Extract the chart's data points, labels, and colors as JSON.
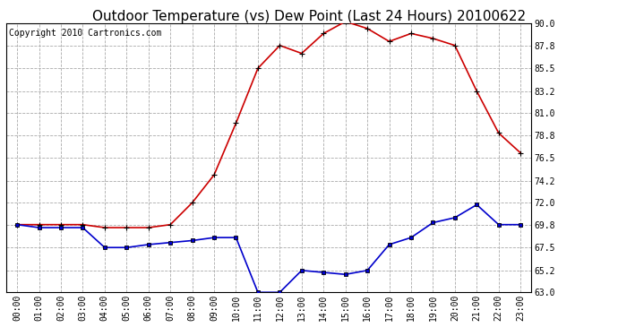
{
  "title": "Outdoor Temperature (vs) Dew Point (Last 24 Hours) 20100622",
  "copyright": "Copyright 2010 Cartronics.com",
  "hours": [
    "00:00",
    "01:00",
    "02:00",
    "03:00",
    "04:00",
    "05:00",
    "06:00",
    "07:00",
    "08:00",
    "09:00",
    "10:00",
    "11:00",
    "12:00",
    "13:00",
    "14:00",
    "15:00",
    "16:00",
    "17:00",
    "18:00",
    "19:00",
    "20:00",
    "21:00",
    "22:00",
    "23:00"
  ],
  "temp": [
    69.8,
    69.8,
    69.8,
    69.8,
    69.5,
    69.5,
    69.5,
    69.8,
    72.0,
    74.8,
    80.0,
    85.5,
    87.8,
    87.0,
    89.0,
    90.2,
    89.5,
    88.2,
    89.0,
    88.5,
    87.8,
    83.2,
    79.0,
    77.0
  ],
  "dew": [
    69.8,
    69.5,
    69.5,
    69.5,
    67.5,
    67.5,
    67.8,
    68.0,
    68.2,
    68.5,
    68.5,
    63.0,
    63.0,
    65.2,
    65.0,
    64.8,
    65.2,
    67.8,
    68.5,
    70.0,
    70.5,
    71.8,
    69.8,
    69.8
  ],
  "temp_color": "#cc0000",
  "dew_color": "#0000cc",
  "bg_color": "#ffffff",
  "plot_bg": "#ffffff",
  "grid_color": "#aaaaaa",
  "ylim": [
    63.0,
    90.0
  ],
  "yticks": [
    63.0,
    65.2,
    67.5,
    69.8,
    72.0,
    74.2,
    76.5,
    78.8,
    81.0,
    83.2,
    85.5,
    87.8,
    90.0
  ],
  "title_fontsize": 11,
  "copyright_fontsize": 7,
  "tick_fontsize": 7
}
